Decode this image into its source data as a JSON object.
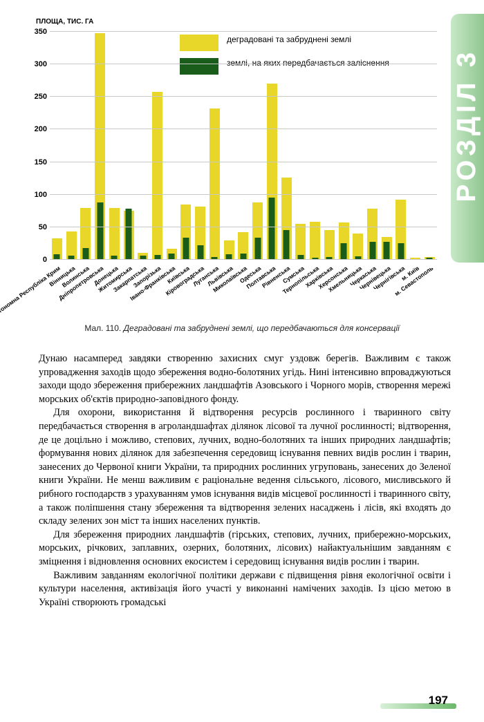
{
  "side_tab": "РОЗДІЛ 3",
  "chart": {
    "type": "bar",
    "y_axis_title": "ПЛОЩА, ТИС. ГА",
    "ylim": [
      0,
      350
    ],
    "ytick_step": 50,
    "yticks": [
      0,
      50,
      100,
      150,
      200,
      250,
      300,
      350
    ],
    "legend": [
      {
        "text": "деградовані та забруднені землі",
        "color": "#e8d728"
      },
      {
        "text": "землі, на яких передбачається заліснення",
        "color": "#1a5c1a"
      }
    ],
    "categories": [
      "Автономна Республіка Крим",
      "Вінницька",
      "Волинська",
      "Дніпропетровська",
      "Донецька",
      "Житомирська",
      "Закарпатська",
      "Запорізька",
      "Івано-Франківська",
      "Київська",
      "Кіровоградська",
      "Луганська",
      "Львівська",
      "Миколаївська",
      "Одеська",
      "Полтавська",
      "Рівненська",
      "Сумська",
      "Тернопільська",
      "Харківська",
      "Херсонська",
      "Хмельницька",
      "Черкаська",
      "Чернівецька",
      "Чернігівська",
      "м. Київ",
      "м. Севастополь"
    ],
    "outer_values": [
      33,
      44,
      80,
      348,
      80,
      75,
      11,
      258,
      17,
      85,
      82,
      232,
      30,
      42,
      88,
      270,
      126,
      55,
      58,
      46,
      57,
      40,
      78,
      35,
      92,
      3,
      4
    ],
    "inner_values": [
      8,
      6,
      18,
      88,
      6,
      79,
      6,
      7,
      10,
      34,
      22,
      4,
      8,
      10,
      34,
      96,
      46,
      7,
      3,
      4,
      26,
      5,
      28,
      28,
      25,
      0,
      3
    ],
    "bar_color": "#e8d728",
    "inner_bar_color": "#1a5c1a",
    "grid_color": "#c8c8c8",
    "x_label_fontsize": 8.5,
    "tick_fontsize": 11
  },
  "caption_prefix": "Мал. 110. ",
  "caption_italic": "Деградовані та забруднені землі, що передбачаються для консервації",
  "paragraphs": [
    "Дунаю насамперед завдяки створенню захисних смуг уздовж берегів. Важливим є також упровадження заходів щодо збереження водно-болотяних угідь. Нині інтенсивно впроваджуються заходи щодо збереження прибережних ландшафтів Азовського і Чорного морів, створення мережі морських об'єктів природно-заповідного фонду.",
    "Для охорони, використання й відтворення ресурсів рослинного і тваринного світу передбачається створення в агроландшафтах ділянок лісової та лучної рослинності; відтворення, де це доцільно і можливо, степових, лучних, водно-болотяних та інших природних ландшафтів; формування нових ділянок для забезпечення середовищ існування певних видів рослин і тварин, занесених до Червоної книги України, та природних рослинних угруповань, занесених до Зеленої книги України. Не менш важливим є раціональне ведення сільського, лісового, мисливського й рибного господарств з урахуванням умов існування видів місцевої рослинності і тваринного світу, а також поліпшення стану збереження та відтворення зелених насаджень і лісів, які входять до складу зелених зон міст та інших населених пунктів.",
    "Для збереження природних ландшафтів (гірських, степових, лучних, прибережно-морських, морських, річкових, заплавних, озерних, болотяних, лісових) найактуальнішим завданням є зміцнення і відновлення основних екосистем і середовищ існування видів рослин і тварин.",
    "Важливим завданням екологічної політики держави є підвищення рівня екологічної освіти і культури населення, активізація його участі у виконанні намічених заходів. Із цією метою в Україні створюють громадські"
  ],
  "page_number": "197"
}
